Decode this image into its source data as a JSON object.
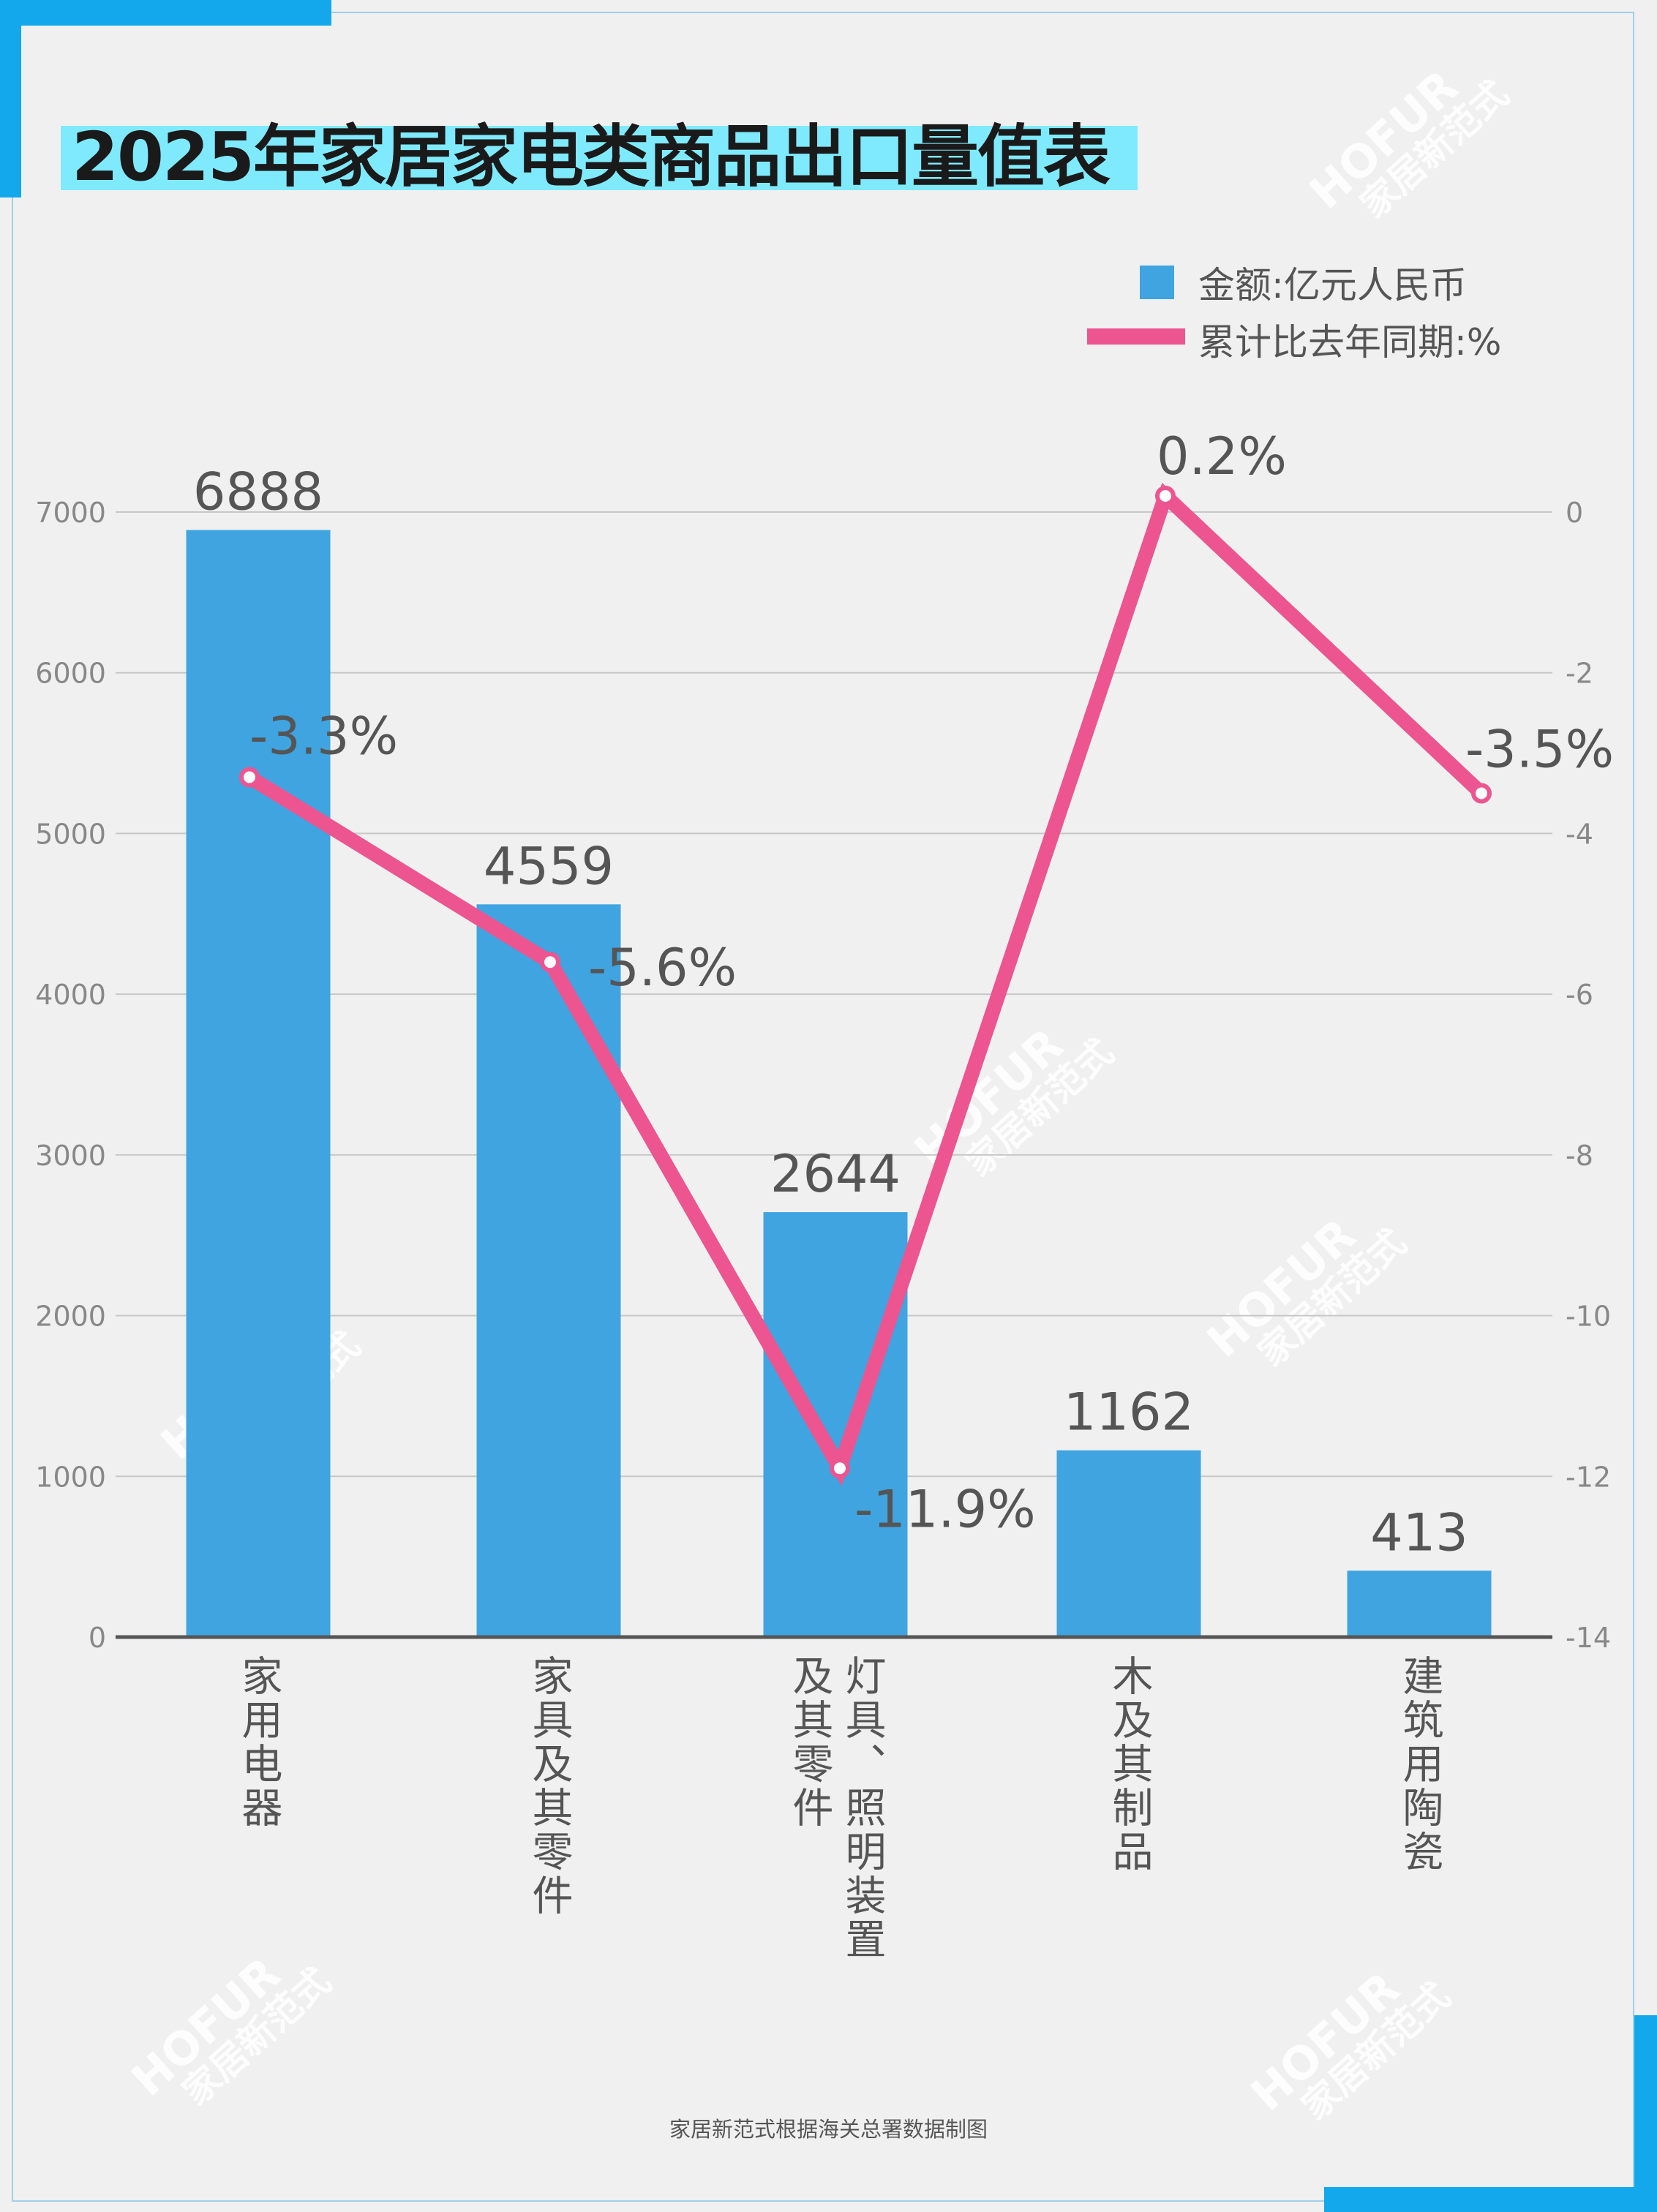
{
  "title": "2025年家居家电类商品出口量值表",
  "legend": {
    "bar_label": "金额:亿元人民币",
    "line_label": "累计比去年同期:%"
  },
  "footer": "家居新范式根据海关总署数据制图",
  "watermark": {
    "en": "HOFUR",
    "cn": "家居新范式"
  },
  "colors": {
    "bar": "#3fa4e0",
    "line": "#ec5590",
    "accent": "#13a8ec",
    "title_bg": "#7feafe"
  },
  "chart_data": {
    "type": "bar",
    "title": "2025年家居家电类商品出口量值表",
    "categories": [
      "家用电器",
      "家具及其零件",
      "灯具、照明装置及其零件",
      "木及其制品",
      "建筑用陶瓷"
    ],
    "category_lines": [
      [
        "家用电器"
      ],
      [
        "家具及其零件"
      ],
      [
        "灯具、照明装置",
        "及其零件"
      ],
      [
        "木及其制品"
      ],
      [
        "建筑用陶瓷"
      ]
    ],
    "series": [
      {
        "name": "金额:亿元人民币",
        "type": "bar",
        "axis": "left",
        "values": [
          6888,
          4559,
          2644,
          1162,
          413
        ],
        "labels": [
          "6888",
          "4559",
          "2644",
          "1162",
          "413"
        ]
      },
      {
        "name": "累计比去年同期:%",
        "type": "line",
        "axis": "right",
        "values": [
          -3.3,
          -5.6,
          -11.9,
          0.2,
          -3.5
        ],
        "labels": [
          "-3.3%",
          "-5.6%",
          "-11.9%",
          "0.2%",
          "-3.5%"
        ]
      }
    ],
    "left_axis": {
      "ylim": [
        0,
        7000
      ],
      "ticks": [
        "0",
        "1000",
        "2000",
        "3000",
        "4000",
        "5000",
        "6000",
        "7000"
      ]
    },
    "right_axis": {
      "ylim": [
        -14,
        0
      ],
      "ticks": [
        "-14",
        "-12",
        "-10",
        "-8",
        "-6",
        "-4",
        "-2",
        "0"
      ]
    },
    "grid": true,
    "legend_position": "top-right"
  }
}
